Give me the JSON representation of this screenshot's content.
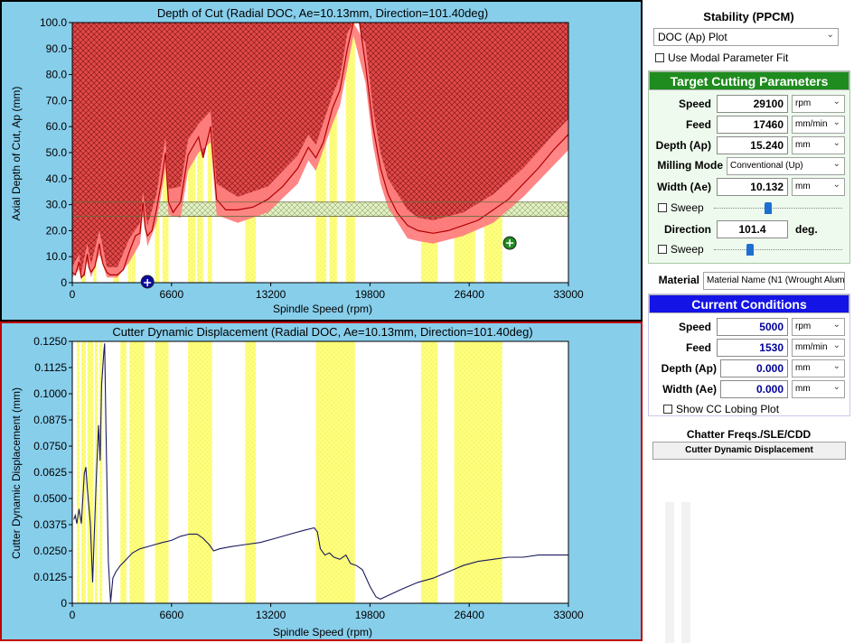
{
  "side_panel": {
    "title": "Stability (PPCM)",
    "plot_select": "DOC (Ap) Plot",
    "modal_fit": "Use Modal Parameter Fit",
    "target": {
      "header": "Target Cutting Parameters",
      "speed_label": "Speed",
      "speed_value": "29100",
      "speed_unit": "rpm",
      "feed_label": "Feed",
      "feed_value": "17460",
      "feed_unit": "mm/min",
      "depth_label": "Depth (Ap)",
      "depth_value": "15.240",
      "depth_unit": "mm",
      "mode_label": "Milling Mode",
      "mode_value": "Conventional (Up)",
      "width_label": "Width (Ae)",
      "width_value": "10.132",
      "width_unit": "mm",
      "sweep_label": "Sweep",
      "direction_label": "Direction",
      "direction_value": "101.4",
      "direction_unit": "deg.",
      "sweep2_label": "Sweep",
      "width_slider": 0.42,
      "direction_slider": 0.27
    },
    "material_label": "Material",
    "material_value": "Material Name (N1 (Wrought Alum",
    "current": {
      "header": "Current Conditions",
      "speed_label": "Speed",
      "speed_value": "5000",
      "speed_unit": "rpm",
      "feed_label": "Feed",
      "feed_value": "1530",
      "feed_unit": "mm/min",
      "depth_label": "Depth (Ap)",
      "depth_value": "0.000",
      "depth_unit": "mm",
      "width_label": "Width (Ae)",
      "width_value": "0.000",
      "width_unit": "mm",
      "lobing": "Show CC Lobing Plot"
    },
    "chatter_title": "Chatter Freqs./SLE/CDD",
    "cdd_button": "Cutter Dynamic Displacement"
  },
  "chart_data": [
    {
      "type": "area",
      "title": "Depth of Cut (Radial DOC, Ae=10.13mm, Direction=101.40deg)",
      "xlabel": "Spindle Speed (rpm)",
      "ylabel": "Axial Depth of Cut, Ap (mm)",
      "xlim": [
        0,
        33000
      ],
      "ylim": [
        0,
        100
      ],
      "xticks": [
        "0",
        "6600",
        "13200",
        "19800",
        "26400",
        "33000"
      ],
      "yticks": [
        "0",
        "10.0",
        "20.0",
        "30.0",
        "40.0",
        "50.0",
        "60.0",
        "70.0",
        "80.0",
        "90.0",
        "100.0"
      ],
      "stability_limit": [
        [
          0,
          4
        ],
        [
          200,
          3
        ],
        [
          450,
          8
        ],
        [
          600,
          2
        ],
        [
          800,
          3
        ],
        [
          1000,
          11
        ],
        [
          1100,
          6
        ],
        [
          1250,
          4
        ],
        [
          1500,
          6
        ],
        [
          1800,
          15
        ],
        [
          1900,
          11
        ],
        [
          2050,
          7
        ],
        [
          2300,
          4
        ],
        [
          2500,
          3
        ],
        [
          3000,
          3
        ],
        [
          3400,
          5
        ],
        [
          3800,
          12
        ],
        [
          4200,
          18
        ],
        [
          4500,
          19
        ],
        [
          4700,
          31
        ],
        [
          4850,
          21
        ],
        [
          5000,
          18
        ],
        [
          5300,
          20
        ],
        [
          5600,
          28
        ],
        [
          5900,
          38
        ],
        [
          6200,
          50
        ],
        [
          6400,
          31
        ],
        [
          6700,
          27
        ],
        [
          7200,
          31
        ],
        [
          7700,
          49
        ],
        [
          8400,
          56
        ],
        [
          8700,
          48
        ],
        [
          9200,
          60
        ],
        [
          9600,
          32
        ],
        [
          10200,
          28
        ],
        [
          11000,
          28
        ],
        [
          12000,
          29
        ],
        [
          13000,
          32
        ],
        [
          14000,
          37
        ],
        [
          15000,
          44
        ],
        [
          15700,
          52
        ],
        [
          16200,
          48
        ],
        [
          16700,
          54
        ],
        [
          17300,
          67
        ],
        [
          17800,
          74
        ],
        [
          18300,
          90
        ],
        [
          18700,
          100
        ],
        [
          19100,
          100
        ],
        [
          19500,
          84
        ],
        [
          20000,
          60
        ],
        [
          20500,
          44
        ],
        [
          21000,
          34
        ],
        [
          21600,
          27
        ],
        [
          22300,
          22
        ],
        [
          23000,
          20
        ],
        [
          24000,
          19
        ],
        [
          25000,
          20
        ],
        [
          26000,
          22
        ],
        [
          27000,
          24
        ],
        [
          28000,
          28
        ],
        [
          29000,
          32
        ],
        [
          30000,
          38
        ],
        [
          31000,
          44
        ],
        [
          32000,
          51
        ],
        [
          33000,
          57
        ]
      ],
      "band_upper": [
        [
          0,
          6
        ],
        [
          450,
          11
        ],
        [
          600,
          4
        ],
        [
          1000,
          15
        ],
        [
          1250,
          7
        ],
        [
          1800,
          20
        ],
        [
          2300,
          6
        ],
        [
          3000,
          6
        ],
        [
          3800,
          17
        ],
        [
          4500,
          23
        ],
        [
          4700,
          35
        ],
        [
          5000,
          22
        ],
        [
          5600,
          34
        ],
        [
          6200,
          56
        ],
        [
          6400,
          36
        ],
        [
          7200,
          37
        ],
        [
          7700,
          55
        ],
        [
          8400,
          61
        ],
        [
          9200,
          66
        ],
        [
          9600,
          38
        ],
        [
          11000,
          33
        ],
        [
          13000,
          37
        ],
        [
          15000,
          49
        ],
        [
          15700,
          57
        ],
        [
          16200,
          53
        ],
        [
          17300,
          72
        ],
        [
          17800,
          79
        ],
        [
          18300,
          96
        ],
        [
          18700,
          100
        ],
        [
          19500,
          92
        ],
        [
          20000,
          67
        ],
        [
          20500,
          50
        ],
        [
          21000,
          40
        ],
        [
          22300,
          28
        ],
        [
          23000,
          25
        ],
        [
          24000,
          24
        ],
        [
          26000,
          27
        ],
        [
          28000,
          34
        ],
        [
          30000,
          44
        ],
        [
          32000,
          57
        ],
        [
          33000,
          63
        ]
      ],
      "band_lower": [
        [
          0,
          2
        ],
        [
          450,
          5
        ],
        [
          600,
          1
        ],
        [
          1000,
          8
        ],
        [
          1250,
          2
        ],
        [
          1800,
          11
        ],
        [
          2300,
          2
        ],
        [
          3000,
          2
        ],
        [
          3800,
          8
        ],
        [
          4500,
          15
        ],
        [
          4700,
          26
        ],
        [
          5000,
          14
        ],
        [
          5600,
          23
        ],
        [
          6200,
          44
        ],
        [
          6400,
          26
        ],
        [
          7200,
          25
        ],
        [
          7700,
          43
        ],
        [
          8400,
          50
        ],
        [
          9200,
          54
        ],
        [
          9600,
          26
        ],
        [
          11000,
          23
        ],
        [
          13000,
          27
        ],
        [
          15000,
          38
        ],
        [
          15700,
          47
        ],
        [
          16200,
          43
        ],
        [
          17300,
          61
        ],
        [
          17800,
          68
        ],
        [
          18300,
          83
        ],
        [
          18700,
          95
        ],
        [
          19500,
          77
        ],
        [
          20000,
          53
        ],
        [
          20500,
          38
        ],
        [
          21000,
          29
        ],
        [
          22300,
          17
        ],
        [
          23000,
          16
        ],
        [
          24000,
          15
        ],
        [
          26000,
          18
        ],
        [
          28000,
          23
        ],
        [
          30000,
          33
        ],
        [
          32000,
          45
        ],
        [
          33000,
          51
        ]
      ],
      "limit_lines": [
        31,
        25.5
      ],
      "yellow_bands": [
        [
          600,
          900
        ],
        [
          1400,
          1600
        ],
        [
          2700,
          3100
        ],
        [
          3700,
          3900
        ],
        [
          3950,
          4200
        ],
        [
          5500,
          5800
        ],
        [
          6000,
          6400
        ],
        [
          7700,
          8200
        ],
        [
          8300,
          8700
        ],
        [
          9000,
          9300
        ],
        [
          11500,
          12200
        ],
        [
          16200,
          16900
        ],
        [
          17100,
          17600
        ],
        [
          18200,
          18800
        ],
        [
          23200,
          24300
        ],
        [
          25400,
          26000
        ],
        [
          26000,
          26800
        ],
        [
          27400,
          28600
        ]
      ],
      "markers": [
        {
          "name": "current",
          "x": 5000,
          "y": 0,
          "color": "#0a0aa0"
        },
        {
          "name": "target",
          "x": 29100,
          "y": 15.24,
          "color": "#1e8c1e"
        }
      ],
      "fill_colors": {
        "unstable": "#d9534f",
        "band": "#ff8080",
        "line": "#b00000",
        "plot_bg": "#ffffff"
      }
    },
    {
      "type": "line",
      "title": "Cutter Dynamic Displacement (Radial DOC, Ae=10.13mm, Direction=101.40deg)",
      "xlabel": "Spindle Speed (rpm)",
      "ylabel": "Cutter Dynamic Displacement (mm)",
      "xlim": [
        0,
        33000
      ],
      "ylim": [
        0,
        0.125
      ],
      "xticks": [
        "0",
        "6600",
        "13200",
        "19800",
        "26400",
        "33000"
      ],
      "yticks": [
        "0",
        "0.0125",
        "0.0250",
        "0.0375",
        "0.0500",
        "0.0625",
        "0.0750",
        "0.0875",
        "0.1000",
        "0.1125",
        "0.1250"
      ],
      "series_points": [
        [
          100,
          0.04
        ],
        [
          200,
          0.042
        ],
        [
          300,
          0.038
        ],
        [
          450,
          0.045
        ],
        [
          600,
          0.038
        ],
        [
          800,
          0.062
        ],
        [
          900,
          0.065
        ],
        [
          1000,
          0.055
        ],
        [
          1200,
          0.038
        ],
        [
          1350,
          0.01
        ],
        [
          1450,
          0.03
        ],
        [
          1600,
          0.06
        ],
        [
          1750,
          0.085
        ],
        [
          1850,
          0.068
        ],
        [
          1950,
          0.104
        ],
        [
          2100,
          0.12
        ],
        [
          2150,
          0.124
        ],
        [
          2250,
          0.08
        ],
        [
          2400,
          0.02
        ],
        [
          2550,
          0.0005
        ],
        [
          2700,
          0.012
        ],
        [
          2900,
          0.015
        ],
        [
          3200,
          0.018
        ],
        [
          3600,
          0.021
        ],
        [
          4000,
          0.024
        ],
        [
          4500,
          0.026
        ],
        [
          5000,
          0.027
        ],
        [
          5500,
          0.028
        ],
        [
          6000,
          0.029
        ],
        [
          6600,
          0.03
        ],
        [
          7200,
          0.032
        ],
        [
          7800,
          0.033
        ],
        [
          8300,
          0.033
        ],
        [
          8700,
          0.031
        ],
        [
          9100,
          0.028
        ],
        [
          9400,
          0.025
        ],
        [
          9800,
          0.026
        ],
        [
          10500,
          0.027
        ],
        [
          11500,
          0.028
        ],
        [
          12500,
          0.029
        ],
        [
          13500,
          0.031
        ],
        [
          14500,
          0.033
        ],
        [
          15500,
          0.035
        ],
        [
          16100,
          0.036
        ],
        [
          16300,
          0.034
        ],
        [
          16500,
          0.026
        ],
        [
          16800,
          0.023
        ],
        [
          17100,
          0.024
        ],
        [
          17400,
          0.022
        ],
        [
          17800,
          0.021
        ],
        [
          18200,
          0.023
        ],
        [
          18500,
          0.019
        ],
        [
          18900,
          0.018
        ],
        [
          19300,
          0.016
        ],
        [
          19800,
          0.008
        ],
        [
          20200,
          0.003
        ],
        [
          20500,
          0.002
        ],
        [
          20800,
          0.003
        ],
        [
          21400,
          0.005
        ],
        [
          22000,
          0.007
        ],
        [
          23000,
          0.01
        ],
        [
          24000,
          0.012
        ],
        [
          25000,
          0.015
        ],
        [
          26000,
          0.018
        ],
        [
          27000,
          0.02
        ],
        [
          28000,
          0.021
        ],
        [
          29000,
          0.022
        ],
        [
          30000,
          0.022
        ],
        [
          31000,
          0.023
        ],
        [
          33000,
          0.023
        ]
      ],
      "yellow_bands": [
        [
          300,
          500
        ],
        [
          600,
          900
        ],
        [
          1000,
          1400
        ],
        [
          1500,
          1700
        ],
        [
          1800,
          2000
        ],
        [
          3200,
          3600
        ],
        [
          3800,
          4800
        ],
        [
          5500,
          6400
        ],
        [
          7700,
          9300
        ],
        [
          11500,
          12200
        ],
        [
          16200,
          18800
        ],
        [
          23200,
          24300
        ],
        [
          25400,
          28600
        ]
      ],
      "line_color": "#1a1a5e"
    }
  ]
}
